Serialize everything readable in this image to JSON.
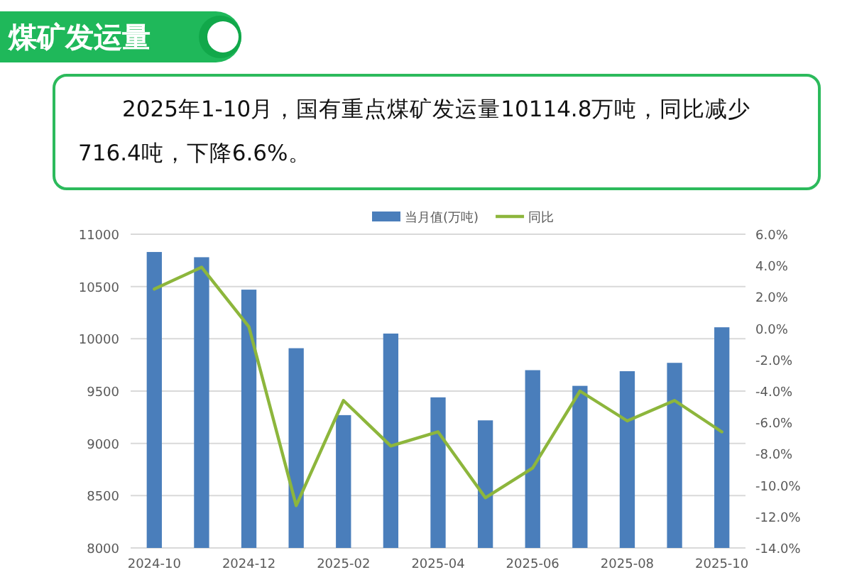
{
  "chart_data": {
    "type": "bar",
    "title": "煤矿发运量",
    "subtitle": "2025年1-10月，国有重点煤矿发运量10114.8万吨，同比减少716.4吨，下降6.6%。",
    "categories": [
      "2024-10",
      null,
      "2024-12",
      null,
      "2025-02",
      null,
      "2025-04",
      null,
      "2025-06",
      null,
      "2025-08",
      null,
      "2025-10"
    ],
    "series": [
      {
        "name": "当月值(万吨)",
        "color": "#4a7ebb",
        "values": [
          10830,
          10780,
          10470,
          9910,
          9270,
          10050,
          9440,
          9220,
          9700,
          9550,
          9690,
          9770,
          10110
        ]
      },
      {
        "name": "同比",
        "type": "line",
        "axis": "y2",
        "color": "#8db63c",
        "values": [
          2.5,
          3.9,
          0.1,
          -11.3,
          -4.6,
          -7.5,
          -6.6,
          -10.8,
          -8.9,
          -4.0,
          -5.9,
          -4.6,
          -6.6
        ]
      }
    ],
    "ylim": [
      8000,
      11000
    ],
    "yticks": [
      8000,
      8500,
      9000,
      9500,
      10000,
      10500,
      11000
    ],
    "y2lim": [
      -14,
      6
    ],
    "y2ticks": [
      {
        "value": -14,
        "label": "-14.0%"
      },
      {
        "value": -12,
        "label": "-12.0%"
      },
      {
        "value": -10,
        "label": "-10.0%"
      },
      {
        "value": -8,
        "label": "-8.0%"
      },
      {
        "value": -6,
        "label": "-6.0%"
      },
      {
        "value": -4,
        "label": "-4.0%"
      },
      {
        "value": -2,
        "label": "-2.0%"
      },
      {
        "value": 0,
        "label": "0.0%"
      },
      {
        "value": 2,
        "label": "2.0%"
      },
      {
        "value": 4,
        "label": "4.0%"
      },
      {
        "value": 6,
        "label": "6.0%"
      }
    ],
    "grid": "y",
    "legend": "top"
  }
}
